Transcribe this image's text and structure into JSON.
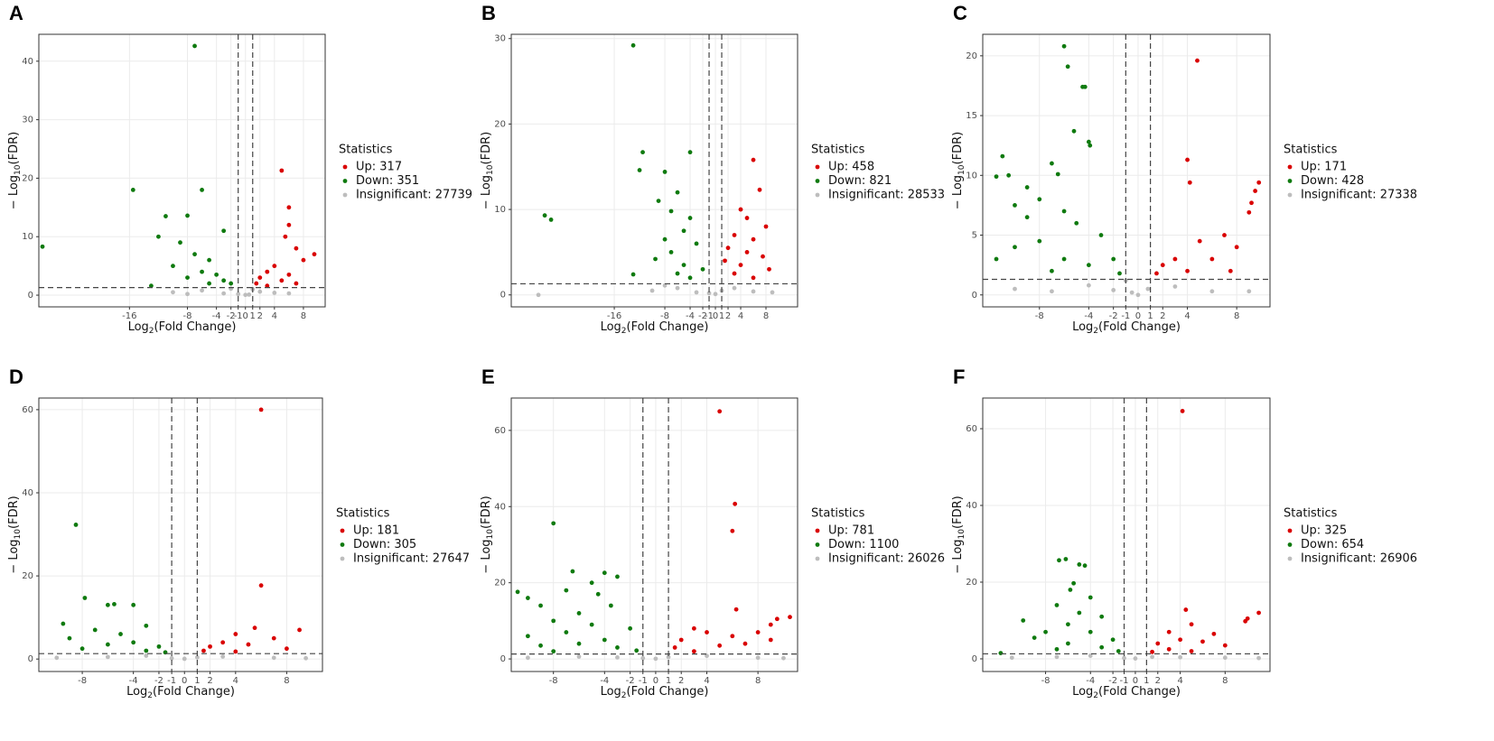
{
  "chart_data": [
    {
      "type": "scatter",
      "panel": "A",
      "x_label": [
        "Log",
        "2",
        "(Fold Change)"
      ],
      "y_label": [
        "− Log",
        "10",
        "(FDR)"
      ],
      "legend_title": "Statistics",
      "xlim": [
        -28.5,
        11
      ],
      "ylim": [
        -2,
        44.6
      ],
      "xticks": [
        -16,
        -8,
        -4,
        -2,
        -1,
        0,
        1,
        2,
        4,
        8
      ],
      "yticks": [
        0,
        10,
        20,
        30,
        40
      ],
      "grid": true,
      "threshold_x": [
        -1,
        1
      ],
      "threshold_y": 1.3,
      "series": [
        {
          "name": "Up: 317",
          "color": "#d90000",
          "x": [
            5,
            6,
            6,
            5.5,
            7,
            9.5,
            8,
            4,
            3,
            6,
            2,
            5,
            1.5,
            7,
            3
          ],
          "values": [
            21.3,
            15,
            12,
            10,
            8,
            7,
            6,
            5,
            4,
            3.5,
            3,
            2.5,
            2,
            2,
            1.6
          ]
        },
        {
          "name": "Down: 351",
          "color": "#0f7a0f",
          "x": [
            -7,
            -15.5,
            -28,
            -6,
            -11,
            -8,
            -12,
            -3,
            -9,
            -7,
            -5,
            -10,
            -6,
            -4,
            -8,
            -3,
            -5,
            -13,
            -2
          ],
          "values": [
            42.6,
            18,
            8.3,
            18,
            13.5,
            13.6,
            10,
            11,
            9,
            7,
            6,
            5,
            4,
            3.5,
            3,
            2.5,
            2,
            1.6,
            2
          ]
        },
        {
          "name": "Insignificant: 27739",
          "color": "#bdbdbd",
          "x": [
            -10,
            -6,
            -3,
            -1,
            0,
            0.5,
            2,
            4,
            6,
            -8,
            1,
            -2
          ],
          "values": [
            0.5,
            0.8,
            0.3,
            0.2,
            0.05,
            0.1,
            0.6,
            0.4,
            0.3,
            0.2,
            1.0,
            1.1
          ]
        }
      ]
    },
    {
      "type": "scatter",
      "panel": "B",
      "x_label": [
        "Log",
        "2",
        "(Fold Change)"
      ],
      "y_label": [
        "− Log",
        "10",
        "(FDR)"
      ],
      "legend_title": "Statistics",
      "xlim": [
        -32.3,
        13
      ],
      "ylim": [
        -1.4,
        30.5
      ],
      "xticks": [
        -16,
        -8,
        -4,
        -2,
        -1,
        0,
        1,
        2,
        4,
        8
      ],
      "yticks": [
        0,
        10,
        20,
        30
      ],
      "grid": true,
      "threshold_x": [
        -1,
        1
      ],
      "threshold_y": 1.3,
      "series": [
        {
          "name": "Up: 458",
          "color": "#d90000",
          "x": [
            6,
            7,
            4,
            5,
            8,
            3,
            6,
            2,
            5,
            7.5,
            1.5,
            4,
            3,
            6,
            8.5
          ],
          "values": [
            15.8,
            12.3,
            10,
            9,
            8,
            7,
            6.5,
            5.5,
            5,
            4.5,
            4,
            3.5,
            2.5,
            2,
            3
          ]
        },
        {
          "name": "Down: 821",
          "color": "#0f7a0f",
          "x": [
            -13,
            -27,
            -26,
            -11.5,
            -4,
            -12,
            -8,
            -6,
            -9,
            -7,
            -4,
            -5,
            -8,
            -3,
            -7,
            -9.5,
            -5,
            -2,
            -6,
            -13,
            -4
          ],
          "values": [
            29.2,
            9.3,
            8.8,
            16.7,
            16.7,
            14.6,
            14.4,
            12,
            11,
            9.8,
            9,
            7.5,
            6.5,
            6,
            5,
            4.2,
            3.5,
            3,
            2.5,
            2.4,
            2
          ]
        },
        {
          "name": "Insignificant: 28533",
          "color": "#bdbdbd",
          "x": [
            -28,
            -10,
            -6,
            -3,
            -1,
            0,
            1,
            3,
            6,
            9,
            -8
          ],
          "values": [
            0,
            0.5,
            0.8,
            0.3,
            0.2,
            0.1,
            0.5,
            0.8,
            0.4,
            0.3,
            1.1
          ]
        }
      ]
    },
    {
      "type": "scatter",
      "panel": "C",
      "x_label": [
        "Log",
        "2",
        "(Fold Change)"
      ],
      "y_label": [
        "− Log",
        "10",
        "(FDR)"
      ],
      "legend_title": "Statistics",
      "xlim": [
        -12.6,
        10.7
      ],
      "ylim": [
        -1,
        21.8
      ],
      "xticks": [
        -8,
        -4,
        -2,
        -1,
        0,
        1,
        2,
        4,
        8
      ],
      "yticks": [
        0,
        5,
        10,
        15,
        20
      ],
      "grid": true,
      "threshold_x": [
        -1,
        1
      ],
      "threshold_y": 1.3,
      "series": [
        {
          "name": "Up: 171",
          "color": "#d90000",
          "x": [
            4.8,
            4,
            4.2,
            9.8,
            9.5,
            9.2,
            9,
            7,
            5,
            8,
            3,
            6,
            2,
            4,
            7.5,
            1.5
          ],
          "values": [
            19.6,
            11.3,
            9.4,
            9.4,
            8.7,
            7.7,
            6.9,
            5,
            4.5,
            4,
            3,
            3,
            2.5,
            2,
            2,
            1.8
          ]
        },
        {
          "name": "Down: 428",
          "color": "#0f7a0f",
          "x": [
            -6,
            -5.7,
            -4.5,
            -4.3,
            -5.2,
            -4,
            -3.9,
            -11,
            -7,
            -6.5,
            -11.5,
            -10.5,
            -9,
            -8,
            -10,
            -6,
            -9,
            -5,
            -3,
            -8,
            -10,
            -2,
            -6,
            -4,
            -11.5,
            -1.5,
            -7
          ],
          "values": [
            20.8,
            19.1,
            17.4,
            17.4,
            13.7,
            12.8,
            12.5,
            11.6,
            11,
            10.1,
            9.9,
            10,
            9,
            8,
            7.5,
            7,
            6.5,
            6,
            5,
            4.5,
            4,
            3,
            3,
            2.5,
            3,
            1.8,
            2
          ]
        },
        {
          "name": "Insignificant: 27338",
          "color": "#bdbdbd",
          "x": [
            -10,
            -7,
            -4,
            -2,
            -0.5,
            0,
            0.8,
            3,
            6,
            9,
            -1
          ],
          "values": [
            0.5,
            0.3,
            0.8,
            0.4,
            0.2,
            0,
            0.5,
            0.7,
            0.3,
            0.3,
            1.2
          ]
        }
      ]
    },
    {
      "type": "scatter",
      "panel": "D",
      "x_label": [
        "Log",
        "2",
        "(Fold Change)"
      ],
      "y_label": [
        "− Log",
        "10",
        "(FDR)"
      ],
      "legend_title": "Statistics",
      "xlim": [
        -11.4,
        10.8
      ],
      "ylim": [
        -3,
        62.8
      ],
      "xticks": [
        -8,
        -4,
        -2,
        -1,
        0,
        1,
        2,
        4,
        8
      ],
      "yticks": [
        0,
        20,
        40,
        60
      ],
      "grid": true,
      "threshold_x": [
        -1,
        1
      ],
      "threshold_y": 1.3,
      "series": [
        {
          "name": "Up: 181",
          "color": "#d90000",
          "x": [
            6,
            6,
            5.5,
            9,
            4,
            7,
            3,
            5,
            2,
            8,
            1.5,
            4
          ],
          "values": [
            60,
            17.7,
            7.5,
            7,
            6,
            5,
            4,
            3.5,
            3,
            2.5,
            2,
            1.8
          ]
        },
        {
          "name": "Down: 305",
          "color": "#0f7a0f",
          "x": [
            -8.5,
            -7.8,
            -6,
            -5.5,
            -4,
            -9.5,
            -3,
            -7,
            -5,
            -9,
            -4,
            -6,
            -2,
            -8,
            -3,
            -1.5
          ],
          "values": [
            32.3,
            14.7,
            13,
            13.2,
            13,
            8.5,
            8,
            7,
            6,
            5,
            4,
            3.5,
            3,
            2.5,
            2,
            1.6
          ]
        },
        {
          "name": "Insignificant: 27647",
          "color": "#bdbdbd",
          "x": [
            -10,
            -6,
            -3,
            -1,
            0,
            1,
            3,
            7,
            9.5
          ],
          "values": [
            0.3,
            0.5,
            0.8,
            0.2,
            0.05,
            0.4,
            0.6,
            0.3,
            0.2
          ]
        }
      ]
    },
    {
      "type": "scatter",
      "panel": "E",
      "x_label": [
        "Log",
        "2",
        "(Fold Change)"
      ],
      "y_label": [
        "− Log",
        "10",
        "(FDR)"
      ],
      "legend_title": "Statistics",
      "xlim": [
        -11.3,
        11.1
      ],
      "ylim": [
        -3.3,
        68.5
      ],
      "xticks": [
        -8,
        -4,
        -2,
        -1,
        0,
        1,
        2,
        4,
        8
      ],
      "yticks": [
        0,
        20,
        40,
        60
      ],
      "grid": true,
      "threshold_x": [
        -1,
        1
      ],
      "threshold_y": 1.3,
      "series": [
        {
          "name": "Up: 781",
          "color": "#d90000",
          "x": [
            5,
            6.2,
            6,
            6.3,
            10.5,
            9.5,
            9,
            3,
            8,
            4,
            6,
            2,
            7,
            5,
            1.5,
            3,
            9
          ],
          "values": [
            65,
            40.7,
            33.6,
            13,
            11,
            10.5,
            9,
            8,
            7,
            7,
            6,
            5,
            4,
            3.5,
            3,
            2,
            5
          ]
        },
        {
          "name": "Down: 1100",
          "color": "#0f7a0f",
          "x": [
            -8,
            -10.8,
            -10,
            -6.5,
            -4,
            -3,
            -5,
            -7,
            -4.5,
            -9,
            -3.5,
            -6,
            -8,
            -5,
            -2,
            -7,
            -10,
            -4,
            -6,
            -9,
            -3,
            -1.5,
            -8
          ],
          "values": [
            35.6,
            17.6,
            16,
            23,
            22.6,
            21.6,
            20,
            18,
            17,
            14,
            14,
            12,
            10,
            9,
            8,
            7,
            6,
            5,
            4,
            3.5,
            3,
            2.2,
            2
          ]
        },
        {
          "name": "Insignificant: 26026",
          "color": "#bdbdbd",
          "x": [
            -10,
            -6,
            -3,
            -1,
            0,
            1,
            4,
            8,
            10
          ],
          "values": [
            0.3,
            0.6,
            0.4,
            0.2,
            0.05,
            0.5,
            0.8,
            0.3,
            0.2
          ]
        }
      ]
    },
    {
      "type": "scatter",
      "panel": "F",
      "x_label": [
        "Log",
        "2",
        "(Fold Change)"
      ],
      "y_label": [
        "− Log",
        "10",
        "(FDR)"
      ],
      "legend_title": "Statistics",
      "xlim": [
        -13.6,
        12
      ],
      "ylim": [
        -3.3,
        68
      ],
      "xticks": [
        -8,
        -4,
        -2,
        -1,
        0,
        1,
        2,
        4,
        8
      ],
      "yticks": [
        0,
        20,
        40,
        60
      ],
      "grid": true,
      "threshold_x": [
        -1,
        1
      ],
      "threshold_y": 1.3,
      "series": [
        {
          "name": "Up: 325",
          "color": "#d90000",
          "x": [
            4.2,
            11,
            10,
            9.8,
            4.5,
            5,
            3,
            7,
            4,
            6,
            2,
            8,
            3,
            5,
            1.5
          ],
          "values": [
            64.6,
            12,
            10.5,
            9.8,
            12.8,
            9,
            7,
            6.5,
            5,
            4.5,
            4,
            3.5,
            2.5,
            2,
            1.8
          ]
        },
        {
          "name": "Down: 654",
          "color": "#0f7a0f",
          "x": [
            -6.8,
            -6.2,
            -5,
            -4.5,
            -5.5,
            -5.8,
            -4,
            -7,
            -10,
            -5,
            -3,
            -6,
            -8,
            -4,
            -9,
            -2,
            -6,
            -3,
            -7,
            -12,
            -1.5
          ],
          "values": [
            25.7,
            26,
            24.6,
            24.3,
            19.7,
            18,
            16,
            14,
            10,
            12,
            11,
            9,
            7,
            7,
            5.5,
            5,
            4,
            3,
            2.5,
            1.5,
            2
          ]
        },
        {
          "name": "Insignificant: 26906",
          "color": "#bdbdbd",
          "x": [
            -11,
            -7,
            -4,
            -1,
            0,
            1.5,
            4,
            8,
            11
          ],
          "values": [
            0.3,
            0.5,
            0.8,
            0.2,
            0.1,
            0.5,
            0.4,
            0.3,
            0.2
          ]
        }
      ]
    }
  ]
}
